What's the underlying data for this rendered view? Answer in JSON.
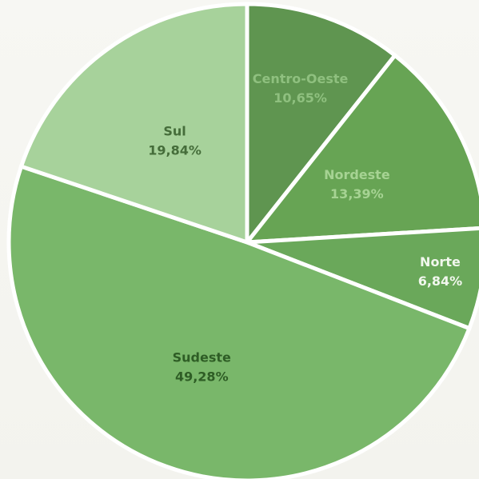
{
  "chart_data": {
    "type": "pie",
    "slices": [
      {
        "name": "Centro-Oeste",
        "value": 10.65,
        "display": "10,65%",
        "color": "#5f9550",
        "text_color": "#8fc07f"
      },
      {
        "name": "Nordeste",
        "value": 13.39,
        "display": "13,39%",
        "color": "#67a454",
        "text_color": "#a6d393"
      },
      {
        "name": "Norte",
        "value": 6.84,
        "display": "6,84%",
        "color": "#6aa85a",
        "text_color": "#f1f7ed"
      },
      {
        "name": "Sudeste",
        "value": 49.28,
        "display": "49,28%",
        "color": "#79b76a",
        "text_color": "#2e5d25"
      },
      {
        "name": "Sul",
        "value": 19.84,
        "display": "19,84%",
        "color": "#a7d29b",
        "text_color": "#456d3a"
      }
    ],
    "start_angle_deg": 0,
    "direction": "clockwise"
  }
}
